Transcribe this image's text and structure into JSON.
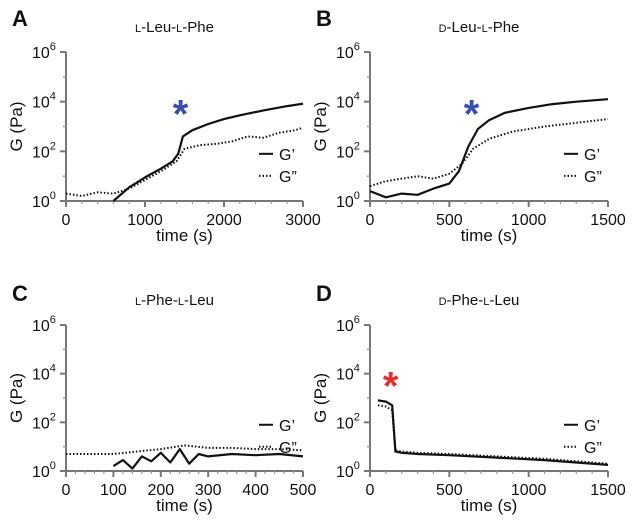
{
  "chart_data": [
    {
      "panel": "A",
      "type": "line",
      "title_prefix": "L",
      "title_mid": "-Leu-",
      "title_prefix2": "L",
      "title_suffix": "-Phe",
      "xlabel": "time (s)",
      "ylabel": "G (Pa)",
      "xlim": [
        0,
        3000
      ],
      "ylim_log10": [
        0,
        6
      ],
      "y_scale": "log",
      "x_ticks": [
        0,
        1000,
        2000,
        3000
      ],
      "x_tick_labels": [
        "0",
        "1000",
        "2000",
        "3000"
      ],
      "y_tick_base": "10",
      "y_tick_exponents": [
        "0",
        "2",
        "4",
        "6"
      ],
      "legend_position": "right",
      "series": [
        {
          "name": "G’",
          "style": "solid",
          "x": [
            600,
            800,
            1000,
            1200,
            1350,
            1420,
            1480,
            1600,
            1800,
            2000,
            2200,
            2500,
            2800,
            3000
          ],
          "y": [
            0.0,
            0.55,
            0.95,
            1.3,
            1.6,
            1.9,
            2.6,
            2.85,
            3.1,
            3.3,
            3.45,
            3.65,
            3.82,
            3.92
          ]
        },
        {
          "name": "G”",
          "style": "dotted",
          "x": [
            0,
            200,
            400,
            600,
            800,
            1000,
            1200,
            1400,
            1500,
            1700,
            1900,
            2100,
            2300,
            2500,
            2700,
            2900,
            3000
          ],
          "y": [
            0.3,
            0.2,
            0.35,
            0.3,
            0.5,
            0.85,
            1.2,
            1.6,
            2.1,
            2.25,
            2.3,
            2.4,
            2.6,
            2.55,
            2.75,
            2.85,
            2.95
          ]
        }
      ],
      "annotation": {
        "symbol": "*",
        "color": "#3a4fa8",
        "x": 1450,
        "y": 3.6
      }
    },
    {
      "panel": "B",
      "type": "line",
      "title_prefix": "D",
      "title_mid": "-Leu-",
      "title_prefix2": "L",
      "title_suffix": "-Phe",
      "xlabel": "time (s)",
      "ylabel": "G (Pa)",
      "xlim": [
        0,
        1500
      ],
      "ylim_log10": [
        0,
        6
      ],
      "y_scale": "log",
      "x_ticks": [
        0,
        500,
        1000,
        1500
      ],
      "x_tick_labels": [
        "0",
        "500",
        "1000",
        "1500"
      ],
      "y_tick_base": "10",
      "y_tick_exponents": [
        "0",
        "2",
        "4",
        "6"
      ],
      "legend_position": "right",
      "series": [
        {
          "name": "G’",
          "style": "solid",
          "x": [
            0,
            100,
            200,
            300,
            400,
            500,
            560,
            620,
            680,
            750,
            850,
            1000,
            1150,
            1300,
            1500
          ],
          "y": [
            0.4,
            0.15,
            0.3,
            0.25,
            0.5,
            0.7,
            1.2,
            2.2,
            2.9,
            3.25,
            3.55,
            3.75,
            3.9,
            4.0,
            4.1
          ]
        },
        {
          "name": "G”",
          "style": "dotted",
          "x": [
            0,
            100,
            200,
            300,
            400,
            500,
            580,
            650,
            750,
            900,
            1100,
            1300,
            1500
          ],
          "y": [
            0.6,
            0.8,
            0.9,
            1.0,
            0.9,
            1.1,
            1.5,
            2.1,
            2.5,
            2.8,
            3.0,
            3.15,
            3.3
          ]
        }
      ],
      "annotation": {
        "symbol": "*",
        "color": "#3a4fa8",
        "x": 640,
        "y": 3.6
      }
    },
    {
      "panel": "C",
      "type": "line",
      "title_prefix": "L",
      "title_mid": "-Phe-",
      "title_prefix2": "L",
      "title_suffix": "-Leu",
      "xlabel": "time (s)",
      "ylabel": "G (Pa)",
      "xlim": [
        0,
        500
      ],
      "ylim_log10": [
        0,
        6
      ],
      "y_scale": "log",
      "x_ticks": [
        0,
        100,
        200,
        300,
        400,
        500
      ],
      "x_tick_labels": [
        "0",
        "100",
        "200",
        "300",
        "400",
        "500"
      ],
      "y_tick_base": "10",
      "y_tick_exponents": [
        "0",
        "2",
        "4",
        "6"
      ],
      "legend_position": "right",
      "series": [
        {
          "name": "G’",
          "style": "solid",
          "x": [
            100,
            120,
            140,
            160,
            180,
            200,
            220,
            240,
            260,
            280,
            300,
            350,
            400,
            450,
            500
          ],
          "y": [
            0.2,
            0.45,
            0.1,
            0.6,
            0.4,
            0.75,
            0.35,
            0.9,
            0.3,
            0.7,
            0.6,
            0.7,
            0.65,
            0.7,
            0.6
          ]
        },
        {
          "name": "G”",
          "style": "dotted",
          "x": [
            0,
            100,
            150,
            200,
            250,
            300,
            350,
            400,
            450,
            500
          ],
          "y": [
            0.7,
            0.7,
            0.8,
            0.9,
            1.05,
            0.95,
            0.95,
            0.9,
            0.9,
            0.85
          ]
        }
      ]
    },
    {
      "panel": "D",
      "type": "line",
      "title_prefix": "D",
      "title_mid": "-Phe-",
      "title_prefix2": "L",
      "title_suffix": "-Leu",
      "xlabel": "time (s)",
      "ylabel": "G (Pa)",
      "xlim": [
        0,
        1500
      ],
      "ylim_log10": [
        0,
        6
      ],
      "y_scale": "log",
      "x_ticks": [
        0,
        500,
        1000,
        1500
      ],
      "x_tick_labels": [
        "0",
        "500",
        "1000",
        "1500"
      ],
      "y_tick_base": "10",
      "y_tick_exponents": [
        "0",
        "2",
        "4",
        "6"
      ],
      "legend_position": "right",
      "series": [
        {
          "name": "G’",
          "style": "solid",
          "x": [
            50,
            100,
            140,
            160,
            200,
            300,
            500,
            800,
            1100,
            1300,
            1500
          ],
          "y": [
            2.9,
            2.85,
            2.7,
            0.8,
            0.75,
            0.7,
            0.65,
            0.55,
            0.45,
            0.35,
            0.25
          ]
        },
        {
          "name": "G”",
          "style": "dotted",
          "x": [
            50,
            100,
            140,
            160,
            200,
            300,
            500,
            800,
            1100,
            1300,
            1500
          ],
          "y": [
            2.7,
            2.65,
            2.5,
            0.85,
            0.8,
            0.75,
            0.7,
            0.6,
            0.5,
            0.4,
            0.3
          ]
        }
      ],
      "annotation": {
        "symbol": "*",
        "color": "#e03030",
        "x": 130,
        "y": 3.6
      }
    }
  ]
}
